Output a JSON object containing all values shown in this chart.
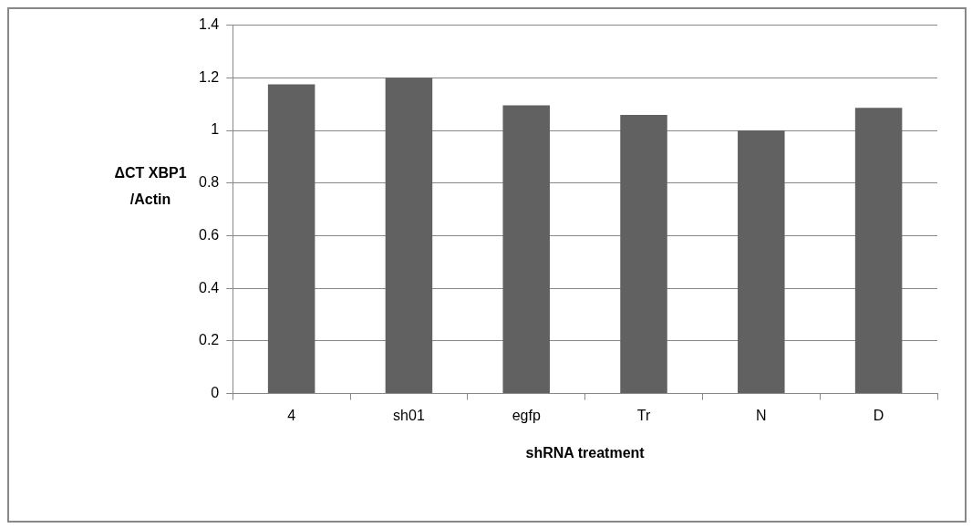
{
  "chart_data": {
    "type": "bar",
    "categories": [
      "4",
      "sh01",
      "egfp",
      "Tr",
      "N",
      "D"
    ],
    "values": [
      1.175,
      1.2,
      1.095,
      1.059,
      1.0,
      1.086
    ],
    "color": "#616161",
    "xlabel": "shRNA treatment",
    "ylabel": "ΔCT XBP1 /Actin",
    "ylim": [
      0,
      1.4
    ],
    "yticks": [
      0,
      0.2,
      0.4,
      0.6,
      0.8,
      1,
      1.2,
      1.4
    ],
    "grid": "y",
    "legend": false
  }
}
